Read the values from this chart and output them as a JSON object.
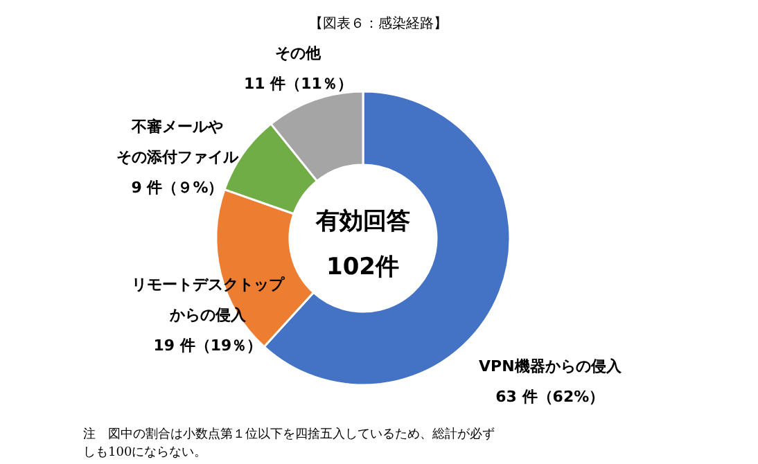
{
  "chart_data": {
    "type": "donut",
    "title": "【図表６：感染経路】",
    "categories": [
      "VPN機器からの侵入",
      "リモートデスクトップからの侵入",
      "不審メールやその添付ファイル",
      "その他"
    ],
    "values": [
      63,
      19,
      9,
      11
    ],
    "colors": [
      "#4472c4",
      "#ed7d31",
      "#70ad47",
      "#a5a5a5"
    ],
    "value_labels": [
      "63 件（62%）",
      "19 件（19％）",
      "9 件（９%）",
      "11 件（11％）"
    ],
    "annotations": [
      "有効回答",
      "102件",
      "注　図中の割合は小数点第１位以下を四捨五入しているため、総計が必ずしも100にならない。"
    ]
  }
}
